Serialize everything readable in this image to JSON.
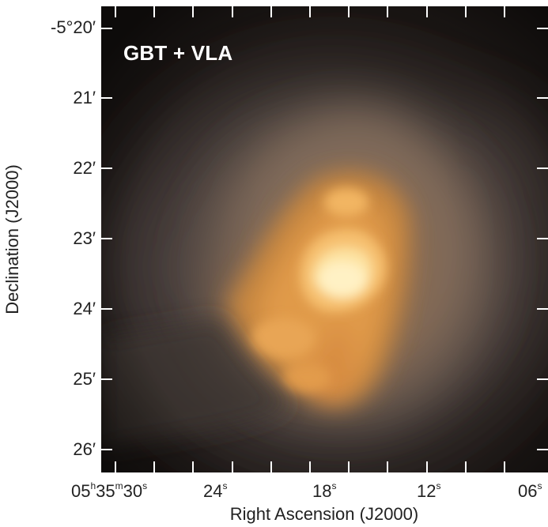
{
  "figure": {
    "overlay_label": "GBT + VLA",
    "ylabel": "Declination (J2000)",
    "xlabel": "Right Ascension (J2000)",
    "yticks": [
      "-5°20′",
      "21′",
      "22′",
      "23′",
      "24′",
      "25′",
      "26′"
    ],
    "xticks": [
      {
        "parts": [
          "05",
          "h",
          "35",
          "m",
          "30",
          "s"
        ]
      },
      {
        "parts": [
          "24",
          "s"
        ]
      },
      {
        "parts": [
          "18",
          "s"
        ]
      },
      {
        "parts": [
          "12",
          "s"
        ]
      },
      {
        "parts": [
          "06",
          "s"
        ]
      }
    ],
    "colors": {
      "background": "#1d1816",
      "glow_core": "#fff0b4",
      "glow_mid": "#f5a646",
      "glow_outer": "#8a7060",
      "tick": "#ffffff"
    }
  }
}
